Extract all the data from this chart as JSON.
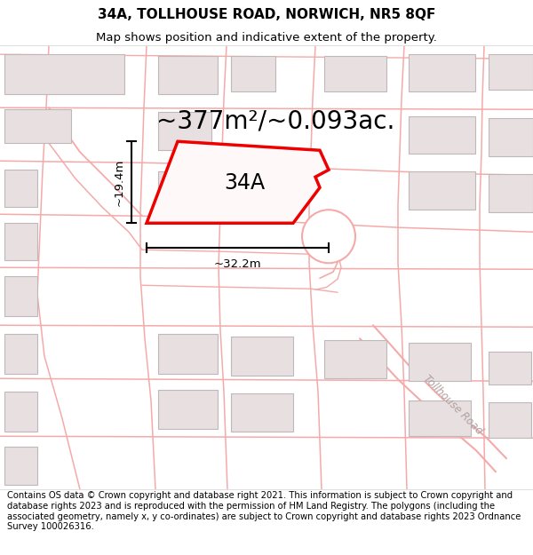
{
  "title": "34A, TOLLHOUSE ROAD, NORWICH, NR5 8QF",
  "subtitle": "Map shows position and indicative extent of the property.",
  "area_text": "~377m²/~0.093ac.",
  "label_34a": "34A",
  "dim_width": "~32.2m",
  "dim_height": "~19.4m",
  "footer": "Contains OS data © Crown copyright and database right 2021. This information is subject to Crown copyright and database rights 2023 and is reproduced with the permission of HM Land Registry. The polygons (including the associated geometry, namely x, y co-ordinates) are subject to Crown copyright and database rights 2023 Ordnance Survey 100026316.",
  "road_color": "#f5aaaa",
  "building_edge": "#c0b8b8",
  "building_fill": "#e8e0e0",
  "highlight_color": "#ee0000",
  "highlight_fill": "#fff8f8",
  "title_fontsize": 11,
  "subtitle_fontsize": 9.5,
  "area_fontsize": 20,
  "label_fontsize": 17,
  "dim_fontsize": 9.5,
  "footer_fontsize": 7.2
}
